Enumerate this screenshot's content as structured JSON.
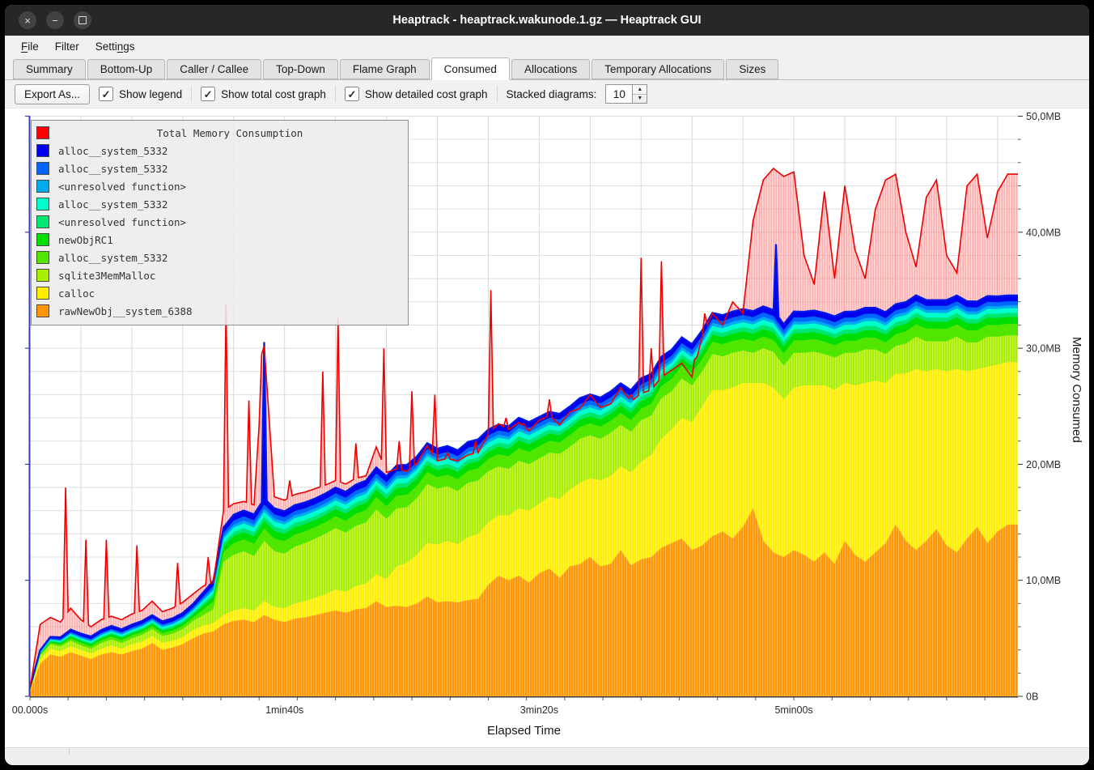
{
  "window": {
    "title": "Heaptrack - heaptrack.wakunode.1.gz — Heaptrack GUI",
    "controls": [
      {
        "name": "close",
        "glyph": "×"
      },
      {
        "name": "minimize",
        "glyph": "−"
      },
      {
        "name": "maximize",
        "glyph": ""
      }
    ]
  },
  "menu": {
    "items": [
      {
        "label": "File",
        "mnemonic": "F"
      },
      {
        "label": "Filter",
        "mnemonic": ""
      },
      {
        "label": "Settings",
        "mnemonic": "n"
      }
    ]
  },
  "tabs": {
    "items": [
      "Summary",
      "Bottom-Up",
      "Caller / Callee",
      "Top-Down",
      "Flame Graph",
      "Consumed",
      "Allocations",
      "Temporary Allocations",
      "Sizes"
    ],
    "active": "Consumed"
  },
  "toolbar": {
    "export_label": "Export As...",
    "checkboxes": [
      {
        "label": "Show legend",
        "checked": true
      },
      {
        "label": "Show total cost graph",
        "checked": true
      },
      {
        "label": "Show detailed cost graph",
        "checked": true
      }
    ],
    "stacked_label": "Stacked diagrams:",
    "stacked_value": "10"
  },
  "chart_data": {
    "type": "area",
    "title": "Total Memory Consumption",
    "xlabel": "Elapsed Time",
    "ylabel": "Memory Consumed",
    "xlim_seconds": [
      0,
      388
    ],
    "ylim_mb": [
      0,
      50
    ],
    "grid": true,
    "legend_position": "top-left",
    "x_ticks": [
      {
        "s": 0,
        "label": "00.000s"
      },
      {
        "s": 100,
        "label": "1min40s"
      },
      {
        "s": 200,
        "label": "3min20s"
      },
      {
        "s": 300,
        "label": "5min00s"
      }
    ],
    "x_minor_tick_s": 15,
    "y_ticks": [
      {
        "mb": 0,
        "label": "0B"
      },
      {
        "mb": 10,
        "label": "10,0MB"
      },
      {
        "mb": 20,
        "label": "20,0MB"
      },
      {
        "mb": 30,
        "label": "30,0MB"
      },
      {
        "mb": 40,
        "label": "40,0MB"
      },
      {
        "mb": 50,
        "label": "50,0MB"
      }
    ],
    "y_minor_tick_mb": 2,
    "legend": {
      "title": "Total Memory Consumption",
      "title_color": "#ff0000",
      "entries": [
        {
          "label": "alloc__system_5332",
          "color": "#0000ee"
        },
        {
          "label": "alloc__system_5332",
          "color": "#0066ff"
        },
        {
          "label": "<unresolved function>",
          "color": "#00aaee"
        },
        {
          "label": "alloc__system_5332",
          "color": "#00ffcc"
        },
        {
          "label": "<unresolved function>",
          "color": "#00e673"
        },
        {
          "label": "newObjRC1",
          "color": "#00dd00"
        },
        {
          "label": "alloc__system_5332",
          "color": "#50e600"
        },
        {
          "label": "sqlite3MemMalloc",
          "color": "#aaee00"
        },
        {
          "label": "calloc",
          "color": "#ffee00"
        },
        {
          "label": "rawNewObj__system_6388",
          "color": "#ff9500"
        }
      ]
    },
    "total": {
      "name": "Total Memory Consumption",
      "color": "#ff0000",
      "x_step": 4,
      "values_mb": [
        0.6,
        6.2,
        6.8,
        6.4,
        7.6,
        6.6,
        6.0,
        6.6,
        6.9,
        6.6,
        7.1,
        7.4,
        8.2,
        7.3,
        7.6,
        8.1,
        8.8,
        9.5,
        9.8,
        16.0,
        16.6,
        16.8,
        16.5,
        30.2,
        17.2,
        16.9,
        17.4,
        17.6,
        17.9,
        18.2,
        18.6,
        18.3,
        18.8,
        19.0,
        21.5,
        19.3,
        19.6,
        19.4,
        20.1,
        21.6,
        20.3,
        20.5,
        20.3,
        20.8,
        21.0,
        22.6,
        23.5,
        23.0,
        23.6,
        22.9,
        23.8,
        24.2,
        23.4,
        24.5,
        24.8,
        26.0,
        24.9,
        25.2,
        26.6,
        25.4,
        26.1,
        26.4,
        27.5,
        28.1,
        28.7,
        27.5,
        31.0,
        33.0,
        32.0,
        34.0,
        33.0,
        41.0,
        44.5,
        45.5,
        44.8,
        45.2,
        38.0,
        35.5,
        43.5,
        36.0,
        44.0,
        38.5,
        36.0,
        42.0,
        44.5,
        45.0,
        40.0,
        37.0,
        43.0,
        44.5,
        38.0,
        36.5,
        44.0,
        45.0,
        39.5,
        43.5,
        45.0
      ],
      "spikes": [
        [
          14,
          18
        ],
        [
          22,
          13.5
        ],
        [
          30,
          13.5
        ],
        [
          42,
          13
        ],
        [
          58,
          11.5
        ],
        [
          70,
          12
        ],
        [
          77,
          33.8
        ],
        [
          86,
          25.5
        ],
        [
          91,
          29.5
        ],
        [
          102,
          18.6
        ],
        [
          108,
          15
        ],
        [
          115,
          28
        ],
        [
          121,
          32.6
        ],
        [
          128,
          21.8
        ],
        [
          134,
          19
        ],
        [
          139,
          30
        ],
        [
          145,
          22
        ],
        [
          150,
          26.3
        ],
        [
          155,
          20
        ],
        [
          159,
          26
        ],
        [
          164,
          21
        ],
        [
          169,
          19.7
        ],
        [
          175,
          22
        ],
        [
          181,
          35
        ],
        [
          187,
          24
        ],
        [
          194,
          23.5
        ],
        [
          199,
          22
        ],
        [
          204,
          25.6
        ],
        [
          209,
          23
        ],
        [
          213,
          24.6
        ],
        [
          220,
          22.8
        ],
        [
          226,
          24
        ],
        [
          231,
          21
        ],
        [
          236,
          26
        ],
        [
          240,
          37.8
        ],
        [
          244,
          30
        ],
        [
          248,
          37.5
        ],
        [
          254,
          28.4
        ],
        [
          261,
          29
        ],
        [
          265,
          33
        ]
      ]
    },
    "series": [
      {
        "name": "rawNewObj__system_6388",
        "color": "#ff9500",
        "x_step": 4,
        "values_mb": [
          0.3,
          2.8,
          3.6,
          3.4,
          3.8,
          3.5,
          3.2,
          3.6,
          3.8,
          3.6,
          3.9,
          4.1,
          4.6,
          4.0,
          4.2,
          4.5,
          5.0,
          5.4,
          5.6,
          6.2,
          6.5,
          6.6,
          6.4,
          7.0,
          6.6,
          6.4,
          6.7,
          6.8,
          7.0,
          7.2,
          7.4,
          7.2,
          7.5,
          7.6,
          8.2,
          7.7,
          7.8,
          7.7,
          8.0,
          8.6,
          8.1,
          8.2,
          8.1,
          8.3,
          8.4,
          9.6,
          10.4,
          10.0,
          10.4,
          9.8,
          10.6,
          11.0,
          10.2,
          11.2,
          11.4,
          12.0,
          11.2,
          11.4,
          12.6,
          11.3,
          11.8,
          12.0,
          12.8,
          13.2,
          13.6,
          12.6,
          13.0,
          13.8,
          14.2,
          13.6,
          14.6,
          16.2,
          13.4,
          12.4,
          12.0,
          12.6,
          12.2,
          11.6,
          12.4,
          11.4,
          13.4,
          12.2,
          11.6,
          12.4,
          13.2,
          14.8,
          13.4,
          12.6,
          13.4,
          14.4,
          13.0,
          12.4,
          13.6,
          14.6,
          13.2,
          14.2,
          14.8
        ]
      },
      {
        "name": "calloc",
        "color": "#ffee00",
        "x_step": 4,
        "values_mb": [
          0.1,
          0.4,
          0.5,
          0.5,
          0.5,
          0.5,
          0.5,
          0.5,
          0.6,
          0.5,
          0.6,
          0.6,
          0.6,
          0.6,
          0.6,
          0.6,
          0.7,
          0.7,
          0.7,
          0.8,
          0.9,
          1.0,
          1.0,
          1.2,
          1.1,
          1.2,
          1.3,
          1.4,
          1.5,
          1.6,
          1.8,
          1.8,
          2.0,
          2.1,
          2.3,
          2.4,
          3.4,
          3.8,
          4.2,
          4.6,
          5.0,
          5.2,
          5.0,
          5.4,
          5.6,
          5.4,
          5.2,
          5.6,
          5.8,
          6.2,
          6.0,
          6.2,
          6.8,
          6.6,
          7.0,
          6.8,
          7.4,
          7.6,
          7.2,
          8.0,
          8.4,
          8.8,
          9.4,
          9.8,
          10.4,
          11.0,
          12.0,
          12.6,
          12.2,
          13.0,
          12.4,
          10.8,
          13.6,
          14.2,
          13.6,
          14.0,
          14.6,
          15.2,
          14.4,
          15.0,
          13.6,
          14.6,
          15.4,
          14.8,
          13.8,
          13.0,
          14.4,
          15.6,
          14.6,
          13.8,
          15.0,
          15.8,
          14.4,
          13.6,
          15.2,
          14.4,
          14.0
        ]
      },
      {
        "name": "sqlite3MemMalloc",
        "color": "#aaee00",
        "x_step": 4,
        "values_mb": [
          0.05,
          0.3,
          0.4,
          0.4,
          0.5,
          0.4,
          0.4,
          0.5,
          0.5,
          0.5,
          0.5,
          0.6,
          0.6,
          0.6,
          0.6,
          0.7,
          0.8,
          0.9,
          1.2,
          4.6,
          4.8,
          4.9,
          4.7,
          5.2,
          4.8,
          4.7,
          4.9,
          5.0,
          5.1,
          5.2,
          5.3,
          5.1,
          5.2,
          5.3,
          5.6,
          5.2,
          5.0,
          4.8,
          4.9,
          5.1,
          4.8,
          4.7,
          4.6,
          4.7,
          4.6,
          4.4,
          4.2,
          4.0,
          4.1,
          4.0,
          3.9,
          3.8,
          3.9,
          3.7,
          3.8,
          3.7,
          3.6,
          3.7,
          3.6,
          3.5,
          3.6,
          3.4,
          3.5,
          3.3,
          3.4,
          3.2,
          3.0,
          3.1,
          2.9,
          3.0,
          2.8,
          2.6,
          3.0,
          3.1,
          2.9,
          3.0,
          2.8,
          2.9,
          2.7,
          2.8,
          2.6,
          2.8,
          2.9,
          2.7,
          2.5,
          2.4,
          2.6,
          2.8,
          2.6,
          2.4,
          2.6,
          2.8,
          2.5,
          2.3,
          2.6,
          2.4,
          2.3
        ]
      },
      {
        "name": "alloc__system_5332",
        "color": "#50e600",
        "x_step": 16,
        "values_mb": [
          0.05,
          0.2,
          0.25,
          0.25,
          0.3,
          1.0,
          1.1,
          1.0,
          1.05,
          1.1,
          1.0,
          1.05,
          1.1,
          1.0,
          1.05,
          1.0,
          1.1,
          1.05,
          1.0,
          1.1,
          1.05,
          1.0,
          1.1,
          1.05,
          1.0
        ]
      },
      {
        "name": "newObjRC1",
        "color": "#00dd00",
        "x_step": 16,
        "values_mb": [
          0.05,
          0.15,
          0.2,
          0.2,
          0.25,
          0.6,
          0.65,
          0.6,
          0.6,
          0.65,
          0.6,
          0.6,
          0.65,
          0.6,
          0.6,
          0.65,
          0.6,
          0.6,
          0.65,
          0.6,
          0.6,
          0.65,
          0.6,
          0.6,
          0.6
        ]
      },
      {
        "name": "<unresolved function>",
        "color": "#00e673",
        "x_step": 16,
        "values_mb": [
          0.03,
          0.1,
          0.1,
          0.12,
          0.15,
          0.35,
          0.38,
          0.35,
          0.36,
          0.38,
          0.35,
          0.36,
          0.38,
          0.35,
          0.36,
          0.38,
          0.35,
          0.36,
          0.38,
          0.35,
          0.36,
          0.38,
          0.35,
          0.36,
          0.35
        ]
      },
      {
        "name": "alloc__system_5332",
        "color": "#00ffcc",
        "x_step": 16,
        "values_mb": [
          0.04,
          0.12,
          0.15,
          0.15,
          0.18,
          0.4,
          0.42,
          0.4,
          0.41,
          0.42,
          0.4,
          0.41,
          0.42,
          0.4,
          0.41,
          0.42,
          0.4,
          0.41,
          0.42,
          0.4,
          0.41,
          0.42,
          0.4,
          0.41,
          0.4
        ]
      },
      {
        "name": "<unresolved function>",
        "color": "#00aaee",
        "x_step": 16,
        "values_mb": [
          0.03,
          0.08,
          0.1,
          0.1,
          0.12,
          0.25,
          0.27,
          0.25,
          0.26,
          0.27,
          0.25,
          0.26,
          0.27,
          0.25,
          0.26,
          0.27,
          0.25,
          0.26,
          0.27,
          0.25,
          0.26,
          0.27,
          0.25,
          0.26,
          0.25
        ]
      },
      {
        "name": "alloc__system_5332",
        "color": "#0066ff",
        "x_step": 16,
        "values_mb": [
          0.04,
          0.1,
          0.12,
          0.13,
          0.15,
          0.35,
          0.37,
          0.35,
          0.36,
          0.37,
          0.35,
          0.36,
          0.37,
          0.35,
          0.36,
          0.37,
          0.35,
          0.36,
          0.37,
          0.35,
          0.36,
          0.37,
          0.35,
          0.36,
          0.35
        ]
      },
      {
        "name": "alloc__system_5332",
        "color": "#0000ee",
        "x_step": 16,
        "values_mb": [
          0.06,
          0.2,
          0.25,
          0.25,
          0.3,
          0.5,
          0.52,
          0.5,
          0.51,
          0.52,
          0.5,
          0.51,
          0.52,
          0.5,
          0.51,
          0.52,
          0.5,
          0.51,
          0.52,
          0.5,
          0.51,
          0.52,
          0.5,
          0.51,
          0.5
        ],
        "spikes": [
          [
            92,
            14.0
          ],
          [
            293,
            6.5
          ]
        ]
      }
    ]
  }
}
